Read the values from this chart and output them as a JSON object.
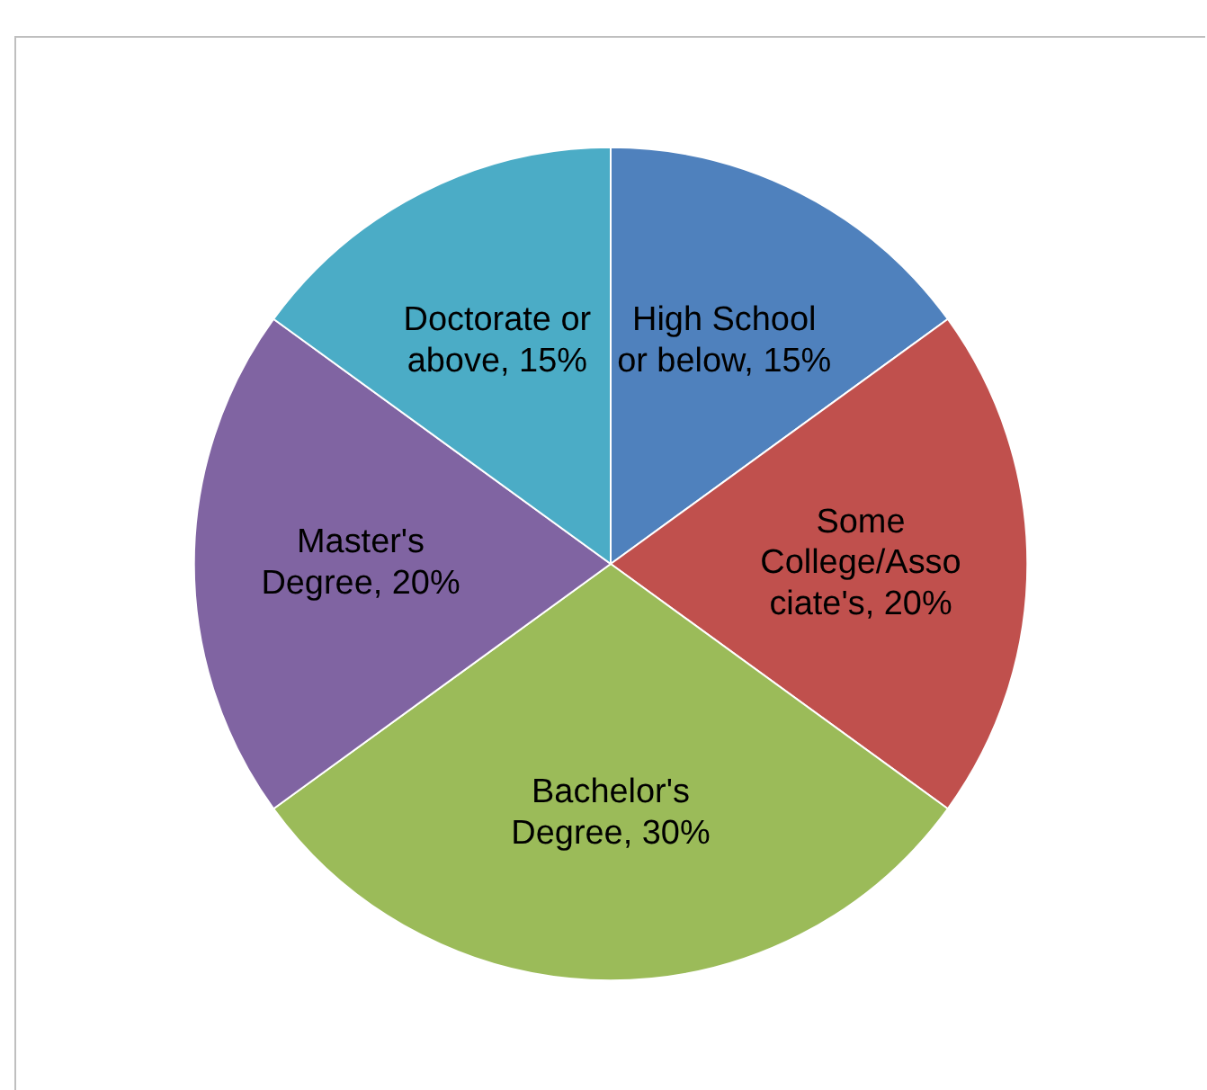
{
  "chart_data": {
    "type": "pie",
    "categories": [
      "High School or below",
      "Some College/Associate's",
      "Bachelor's Degree",
      "Master's Degree",
      "Doctorate or above"
    ],
    "values": [
      15,
      20,
      30,
      20,
      15
    ],
    "value_labels": [
      "15%",
      "20%",
      "30%",
      "20%",
      "15%"
    ],
    "colors": [
      "#4f81bd",
      "#c0504d",
      "#9bbb59",
      "#8064a2",
      "#4bacc6"
    ],
    "legend": false
  }
}
